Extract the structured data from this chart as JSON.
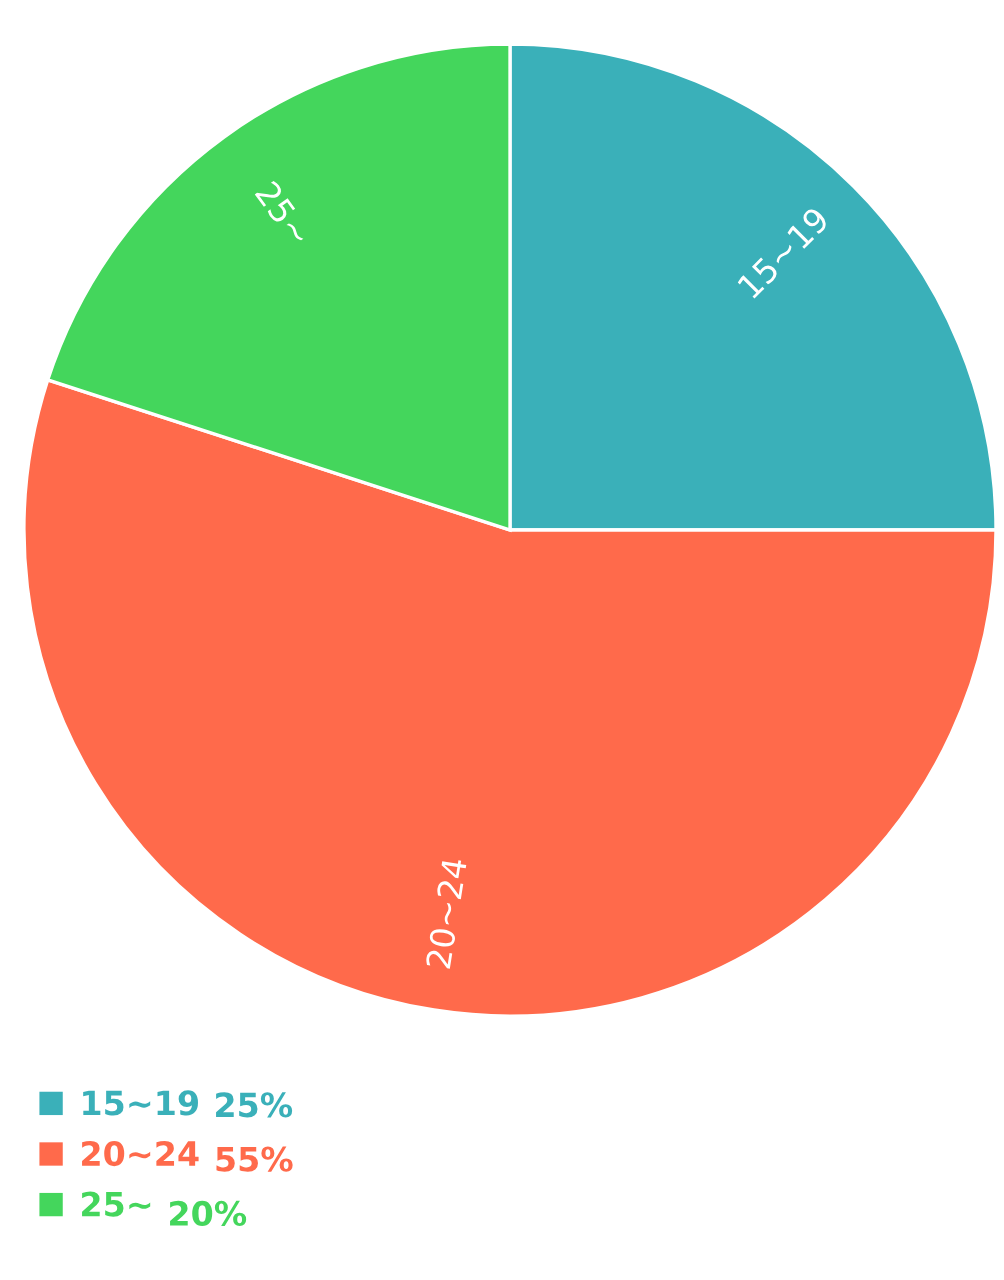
{
  "chart_data": {
    "type": "pie",
    "categories": [
      "15~19",
      "20~24",
      "25~"
    ],
    "values": [
      25,
      55,
      20
    ],
    "value_labels": [
      "25%",
      "55%",
      "20%"
    ],
    "colors": [
      "#3ab0b9",
      "#ff6a4b",
      "#44d65c"
    ],
    "legend": "bottom left"
  }
}
